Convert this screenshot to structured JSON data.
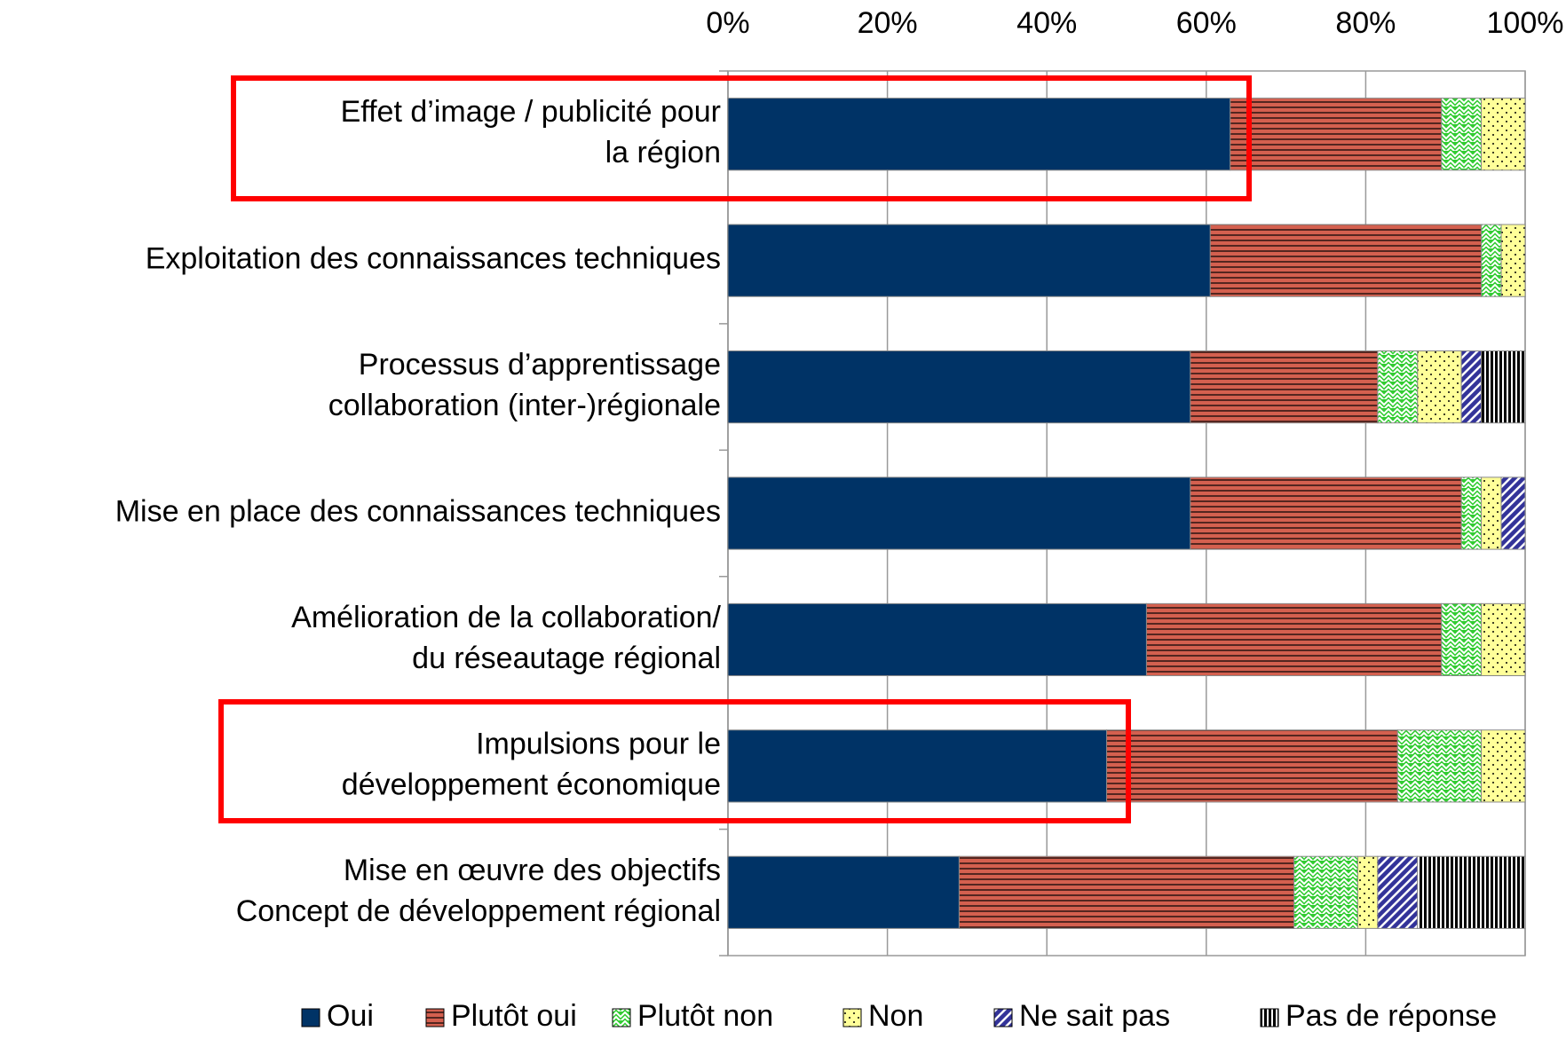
{
  "chart_data": {
    "type": "stacked-bar-horizontal",
    "categories": [
      "Effet d’image / publicité pour\nla région",
      "Exploitation des connaissances techniques",
      "Processus d’apprentissage\ncollaboration (inter-)régionale",
      "Mise en place des connaissances techniques",
      "Amélioration de la collaboration/\ndu réseautage régional",
      "Impulsions pour le\ndéveloppement économique",
      "Mise en œuvre des objectifs\nConcept de développement régional"
    ],
    "series": [
      {
        "name": "Oui",
        "color": "#003366",
        "pattern": "solid",
        "values": [
          63,
          60.5,
          58,
          58,
          52.5,
          47.5,
          29
        ]
      },
      {
        "name": "Plutôt oui",
        "color": "#d4604f",
        "pattern": "hlines",
        "values": [
          26.5,
          34,
          23.5,
          34,
          37,
          36.5,
          42
        ]
      },
      {
        "name": "Plutôt non",
        "color": "#33cc33",
        "pattern": "zigzag",
        "values": [
          5,
          2.5,
          5,
          2.5,
          5,
          10.5,
          8
        ]
      },
      {
        "name": "Non",
        "color": "#ffff99",
        "pattern": "dots",
        "values": [
          5.5,
          3,
          5.5,
          2.5,
          5.5,
          5.5,
          2.5
        ]
      },
      {
        "name": "Ne sait pas",
        "color": "#333399",
        "pattern": "diag",
        "values": [
          0,
          0,
          2.5,
          3,
          0,
          0,
          5
        ]
      },
      {
        "name": "Pas de réponse",
        "color": "#000000",
        "pattern": "vlines",
        "values": [
          0,
          0,
          5.5,
          0,
          0,
          0,
          13.5
        ]
      }
    ],
    "xlim": [
      0,
      100
    ],
    "xticks": [
      {
        "value": 0,
        "label": "0%"
      },
      {
        "value": 20,
        "label": "20%"
      },
      {
        "value": 40,
        "label": "40%"
      },
      {
        "value": 60,
        "label": "60%"
      },
      {
        "value": 80,
        "label": "80%"
      },
      {
        "value": 100,
        "label": "100%"
      }
    ],
    "grid": true,
    "legend": "bottom"
  }
}
